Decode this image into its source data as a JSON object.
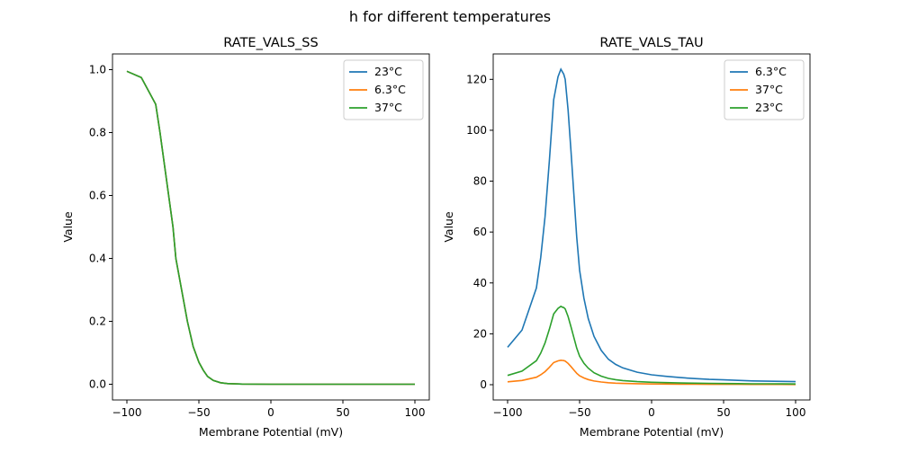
{
  "figure_title": "h for different temperatures",
  "chart_data": [
    {
      "type": "line",
      "title": "RATE_VALS_SS",
      "xlabel": "Membrane Potential (mV)",
      "ylabel": "Value",
      "xlim": [
        -110,
        110
      ],
      "ylim": [
        -0.05,
        1.05
      ],
      "xticks": [
        -100,
        -50,
        0,
        50,
        100
      ],
      "yticks": [
        0.0,
        0.2,
        0.4,
        0.6,
        0.8,
        1.0
      ],
      "ytick_labels": [
        "0.0",
        "0.2",
        "0.4",
        "0.6",
        "0.8",
        "1.0"
      ],
      "legend_position": "top-right",
      "grid": false,
      "x": [
        -100,
        -90,
        -80,
        -77,
        -74,
        -71,
        -68,
        -66,
        -62,
        -58,
        -54,
        -50,
        -47,
        -44,
        -40,
        -35,
        -30,
        -20,
        0,
        50,
        100
      ],
      "series": [
        {
          "name": "23°C",
          "color": "#1f77b4",
          "values": [
            0.995,
            0.975,
            0.89,
            0.8,
            0.7,
            0.6,
            0.5,
            0.4,
            0.3,
            0.2,
            0.12,
            0.07,
            0.045,
            0.025,
            0.012,
            0.005,
            0.002,
            0.0005,
            0,
            0,
            0
          ]
        },
        {
          "name": "6.3°C",
          "color": "#ff7f0e",
          "values": [
            0.995,
            0.975,
            0.89,
            0.8,
            0.7,
            0.6,
            0.5,
            0.4,
            0.3,
            0.2,
            0.12,
            0.07,
            0.045,
            0.025,
            0.012,
            0.005,
            0.002,
            0.0005,
            0,
            0,
            0
          ]
        },
        {
          "name": "37°C",
          "color": "#2ca02c",
          "values": [
            0.995,
            0.975,
            0.89,
            0.8,
            0.7,
            0.6,
            0.5,
            0.4,
            0.3,
            0.2,
            0.12,
            0.07,
            0.045,
            0.025,
            0.012,
            0.005,
            0.002,
            0.0005,
            0,
            0,
            0
          ]
        }
      ]
    },
    {
      "type": "line",
      "title": "RATE_VALS_TAU",
      "xlabel": "Membrane Potential (mV)",
      "ylabel": "Value",
      "xlim": [
        -110,
        110
      ],
      "ylim": [
        -6,
        130
      ],
      "xticks": [
        -100,
        -50,
        0,
        50,
        100
      ],
      "yticks": [
        0,
        20,
        40,
        60,
        80,
        100,
        120
      ],
      "ytick_labels": [
        "0",
        "20",
        "40",
        "60",
        "80",
        "100",
        "120"
      ],
      "legend_position": "top-right",
      "grid": false,
      "x": [
        -100,
        -90,
        -80,
        -77,
        -74,
        -71,
        -68,
        -65,
        -63,
        -62,
        -61,
        -60,
        -58,
        -56,
        -54,
        -52,
        -50,
        -47,
        -44,
        -40,
        -35,
        -30,
        -25,
        -20,
        -10,
        0,
        10,
        20,
        30,
        40,
        50,
        60,
        70,
        80,
        90,
        100
      ],
      "series": [
        {
          "name": "6.3°C",
          "color": "#1f77b4",
          "values": [
            14.7,
            21.5,
            38,
            50,
            66,
            88,
            112,
            121,
            124,
            123,
            122,
            120,
            108,
            92,
            75,
            58,
            45,
            34,
            26,
            19,
            13.5,
            10,
            8,
            6.6,
            4.9,
            3.9,
            3.3,
            2.8,
            2.4,
            2.1,
            1.9,
            1.7,
            1.5,
            1.4,
            1.3,
            1.2
          ]
        },
        {
          "name": "37°C",
          "color": "#ff7f0e",
          "values": [
            1.14,
            1.67,
            2.95,
            3.88,
            5.12,
            6.82,
            8.68,
            9.38,
            9.61,
            9.53,
            9.46,
            9.3,
            8.37,
            7.13,
            5.81,
            4.5,
            3.49,
            2.64,
            2.02,
            1.47,
            1.05,
            0.78,
            0.62,
            0.51,
            0.38,
            0.3,
            0.26,
            0.22,
            0.19,
            0.16,
            0.15,
            0.13,
            0.12,
            0.11,
            0.1,
            0.09
          ]
        },
        {
          "name": "23°C",
          "color": "#2ca02c",
          "values": [
            3.65,
            5.33,
            9.43,
            12.4,
            16.4,
            21.8,
            27.8,
            30.0,
            30.8,
            30.5,
            30.3,
            29.8,
            26.8,
            22.8,
            18.6,
            14.4,
            11.2,
            8.4,
            6.5,
            4.7,
            3.35,
            2.48,
            1.99,
            1.64,
            1.22,
            0.97,
            0.82,
            0.69,
            0.6,
            0.52,
            0.47,
            0.42,
            0.37,
            0.35,
            0.32,
            0.3
          ]
        }
      ]
    }
  ]
}
